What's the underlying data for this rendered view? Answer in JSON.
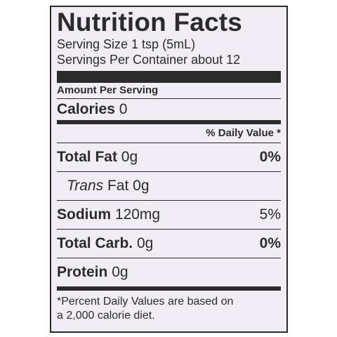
{
  "title": "Nutrition Facts",
  "serving_size": "Serving Size 1 tsp (5mL)",
  "servings_per_container": "Servings Per Container about 12",
  "amount_per_serving": "Amount Per Serving",
  "calories": {
    "label": "Calories",
    "value": "0"
  },
  "daily_value_header": "% Daily Value *",
  "nutrients": [
    {
      "label": "Total Fat",
      "amount": "0g",
      "percent": "0%"
    },
    {
      "label": "Trans",
      "label_rest": "Fat 0g"
    },
    {
      "label": "Sodium",
      "amount": "120mg",
      "percent": "5%"
    },
    {
      "label": "Total Carb.",
      "amount": "0g",
      "percent": "0%"
    },
    {
      "label": "Protein",
      "amount": "0g"
    }
  ],
  "footnote_line1": "*Percent Daily Values are based on",
  "footnote_line2": "a 2,000 calorie diet."
}
